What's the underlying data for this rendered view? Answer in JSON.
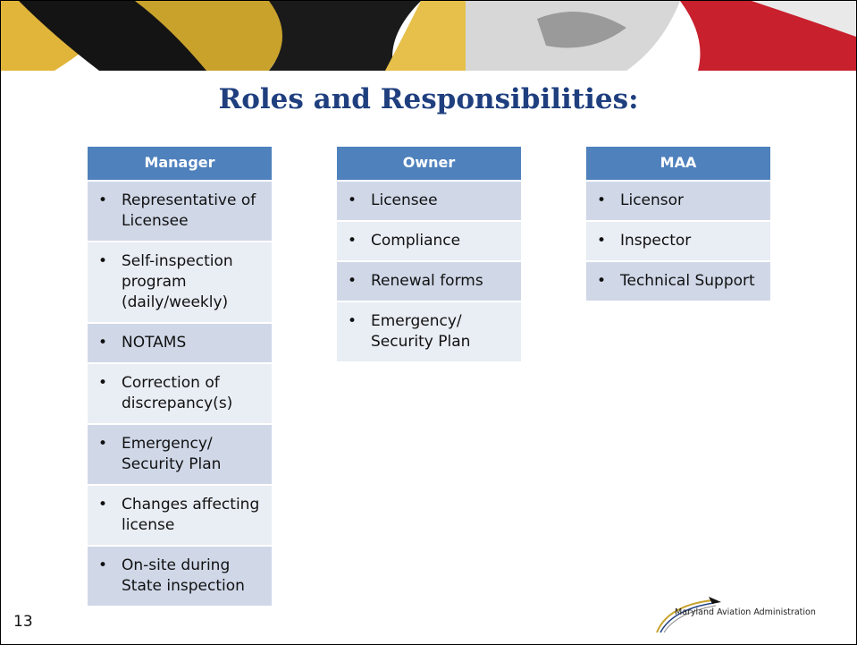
{
  "title": "Roles and Responsibilities:",
  "columns": [
    {
      "header": "Manager",
      "items": [
        "Representative of Licensee",
        "Self-inspection program (daily/weekly)",
        "NOTAMS",
        "Correction of discrepancy(s)",
        "Emergency/ Security Plan",
        "Changes affecting license",
        "On-site during State inspection"
      ]
    },
    {
      "header": "Owner",
      "items": [
        "Licensee",
        "Compliance",
        "Renewal forms",
        "Emergency/ Security Plan"
      ]
    },
    {
      "header": "MAA",
      "items": [
        "Licensor",
        "Inspector",
        "Technical Support"
      ]
    }
  ],
  "page_number": "13",
  "logo_text": "Maryland Aviation Administration"
}
